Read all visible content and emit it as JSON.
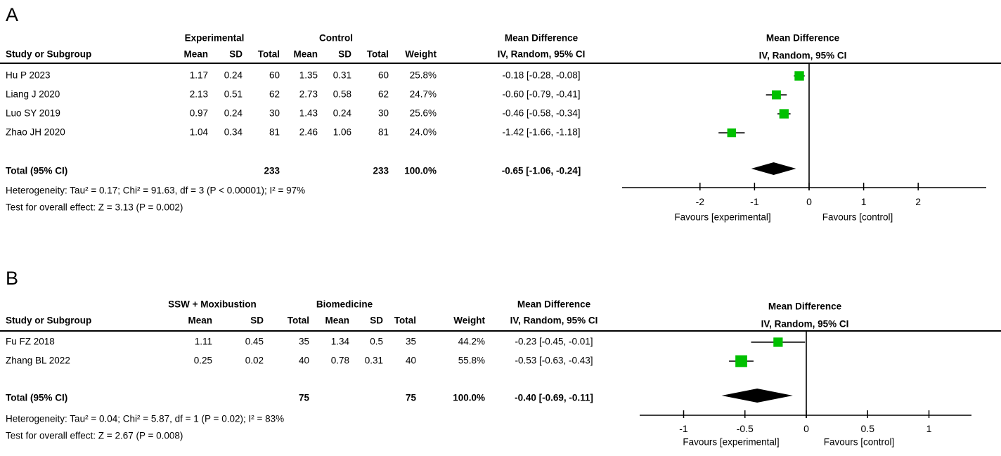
{
  "colors": {
    "background": "#ffffff",
    "marker_green": "#00c000",
    "line_black": "#000000",
    "diamond_black": "#000000"
  },
  "panels": [
    {
      "label": "A",
      "table": {
        "group_headers": {
          "experimental": "Experimental",
          "control": "Control",
          "effect": "Mean Difference"
        },
        "col_headers": {
          "study": "Study or Subgroup",
          "mean": "Mean",
          "sd": "SD",
          "total": "Total",
          "mean2": "Mean",
          "sd2": "SD",
          "total2": "Total",
          "weight": "Weight",
          "ci": "IV, Random, 95% CI"
        },
        "rows": [
          {
            "study": "Hu P 2023",
            "mean": "1.17",
            "sd": "0.24",
            "total": "60",
            "mean2": "1.35",
            "sd2": "0.31",
            "total2": "60",
            "weight": "25.8%",
            "ci": "-0.18 [-0.28, -0.08]"
          },
          {
            "study": "Liang J 2020",
            "mean": "2.13",
            "sd": "0.51",
            "total": "62",
            "mean2": "2.73",
            "sd2": "0.58",
            "total2": "62",
            "weight": "24.7%",
            "ci": "-0.60 [-0.79, -0.41]"
          },
          {
            "study": "Luo SY 2019",
            "mean": "0.97",
            "sd": "0.24",
            "total": "30",
            "mean2": "1.43",
            "sd2": "0.24",
            "total2": "30",
            "weight": "25.6%",
            "ci": "-0.46 [-0.58, -0.34]"
          },
          {
            "study": "Zhao JH 2020",
            "mean": "1.04",
            "sd": "0.34",
            "total": "81",
            "mean2": "2.46",
            "sd2": "1.06",
            "total2": "81",
            "weight": "24.0%",
            "ci": "-1.42 [-1.66, -1.18]"
          }
        ],
        "total_row": {
          "study": "Total (95% CI)",
          "total": "233",
          "total2": "233",
          "weight": "100.0%",
          "ci": "-0.65 [-1.06, -0.24]"
        },
        "heterogeneity": "Heterogeneity: Tau² = 0.17; Chi² = 91.63, df = 3 (P < 0.00001); I² = 97%",
        "overall_effect": "Test for overall effect: Z = 3.13 (P = 0.002)"
      },
      "plot_headers": {
        "line1": "Mean Difference",
        "line2": "IV, Random, 95% CI"
      },
      "favours": {
        "left": "Favours [experimental]",
        "right": "Favours [control]"
      }
    },
    {
      "label": "B",
      "table": {
        "group_headers": {
          "experimental": "SSW + Moxibustion",
          "control": "Biomedicine",
          "effect": "Mean Difference"
        },
        "col_headers": {
          "study": "Study or Subgroup",
          "mean": "Mean",
          "sd": "SD",
          "total": "Total",
          "mean2": "Mean",
          "sd2": "SD",
          "total2": "Total",
          "weight": "Weight",
          "ci": "IV, Random, 95% CI"
        },
        "rows": [
          {
            "study": "Fu FZ 2018",
            "mean": "1.11",
            "sd": "0.45",
            "total": "35",
            "mean2": "1.34",
            "sd2": "0.5",
            "total2": "35",
            "weight": "44.2%",
            "ci": "-0.23 [-0.45, -0.01]"
          },
          {
            "study": "Zhang BL 2022",
            "mean": "0.25",
            "sd": "0.02",
            "total": "40",
            "mean2": "0.78",
            "sd2": "0.31",
            "total2": "40",
            "weight": "55.8%",
            "ci": "-0.53 [-0.63, -0.43]"
          }
        ],
        "total_row": {
          "study": "Total (95% CI)",
          "total": "75",
          "total2": "75",
          "weight": "100.0%",
          "ci": "-0.40 [-0.69, -0.11]"
        },
        "heterogeneity": "Heterogeneity: Tau² = 0.04; Chi² = 5.87, df = 1 (P = 0.02); I² = 83%",
        "overall_effect": "Test for overall effect: Z = 2.67 (P = 0.008)"
      },
      "plot_headers": {
        "line1": "Mean Difference",
        "line2": "IV, Random, 95% CI"
      },
      "favours": {
        "left": "Favours [experimental]",
        "right": "Favours [control]"
      }
    }
  ],
  "chart_data": [
    {
      "type": "scatter",
      "subtype": "forest-plot",
      "panel": "A",
      "title": "Mean Difference — IV, Random, 95% CI",
      "groups": {
        "experimental": "Experimental",
        "control": "Control"
      },
      "studies": [
        {
          "name": "Hu P 2023",
          "exp": {
            "mean": 1.17,
            "sd": 0.24,
            "total": 60
          },
          "ctrl": {
            "mean": 1.35,
            "sd": 0.31,
            "total": 60
          },
          "weight_pct": 25.8,
          "md": -0.18,
          "ci_low": -0.28,
          "ci_high": -0.08
        },
        {
          "name": "Liang J 2020",
          "exp": {
            "mean": 2.13,
            "sd": 0.51,
            "total": 62
          },
          "ctrl": {
            "mean": 2.73,
            "sd": 0.58,
            "total": 62
          },
          "weight_pct": 24.7,
          "md": -0.6,
          "ci_low": -0.79,
          "ci_high": -0.41
        },
        {
          "name": "Luo SY 2019",
          "exp": {
            "mean": 0.97,
            "sd": 0.24,
            "total": 30
          },
          "ctrl": {
            "mean": 1.43,
            "sd": 0.24,
            "total": 30
          },
          "weight_pct": 25.6,
          "md": -0.46,
          "ci_low": -0.58,
          "ci_high": -0.34
        },
        {
          "name": "Zhao JH 2020",
          "exp": {
            "mean": 1.04,
            "sd": 0.34,
            "total": 81
          },
          "ctrl": {
            "mean": 2.46,
            "sd": 1.06,
            "total": 81
          },
          "weight_pct": 24.0,
          "md": -1.42,
          "ci_low": -1.66,
          "ci_high": -1.18
        }
      ],
      "total": {
        "exp_total": 233,
        "ctrl_total": 233,
        "weight_pct": 100.0,
        "md": -0.65,
        "ci_low": -1.06,
        "ci_high": -0.24
      },
      "heterogeneity": {
        "tau2": 0.17,
        "chi2": 91.63,
        "df": 3,
        "p": "< 0.00001",
        "i2_pct": 97
      },
      "overall_effect": {
        "z": 3.13,
        "p": 0.002
      },
      "x_ticks": [
        -2,
        -1,
        0,
        1,
        2
      ],
      "xlim": [
        -3.4,
        3.25
      ],
      "xlabel_left": "Favours [experimental]",
      "xlabel_right": "Favours [control]",
      "grid": false,
      "legend": false
    },
    {
      "type": "scatter",
      "subtype": "forest-plot",
      "panel": "B",
      "title": "Mean Difference — IV, Random, 95% CI",
      "groups": {
        "experimental": "SSW + Moxibustion",
        "control": "Biomedicine"
      },
      "studies": [
        {
          "name": "Fu FZ 2018",
          "exp": {
            "mean": 1.11,
            "sd": 0.45,
            "total": 35
          },
          "ctrl": {
            "mean": 1.34,
            "sd": 0.5,
            "total": 35
          },
          "weight_pct": 44.2,
          "md": -0.23,
          "ci_low": -0.45,
          "ci_high": -0.01
        },
        {
          "name": "Zhang BL 2022",
          "exp": {
            "mean": 0.25,
            "sd": 0.02,
            "total": 40
          },
          "ctrl": {
            "mean": 0.78,
            "sd": 0.31,
            "total": 40
          },
          "weight_pct": 55.8,
          "md": -0.53,
          "ci_low": -0.63,
          "ci_high": -0.43
        }
      ],
      "total": {
        "exp_total": 75,
        "ctrl_total": 75,
        "weight_pct": 100.0,
        "md": -0.4,
        "ci_low": -0.69,
        "ci_high": -0.11
      },
      "heterogeneity": {
        "tau2": 0.04,
        "chi2": 5.87,
        "df": 1,
        "p": "= 0.02",
        "i2_pct": 83
      },
      "overall_effect": {
        "z": 2.67,
        "p": 0.008
      },
      "x_ticks": [
        -1,
        -0.5,
        0,
        0.5,
        1
      ],
      "xlim": [
        -1.36,
        1.35
      ],
      "xlabel_left": "Favours [experimental]",
      "xlabel_right": "Favours [control]",
      "grid": false,
      "legend": false
    }
  ]
}
